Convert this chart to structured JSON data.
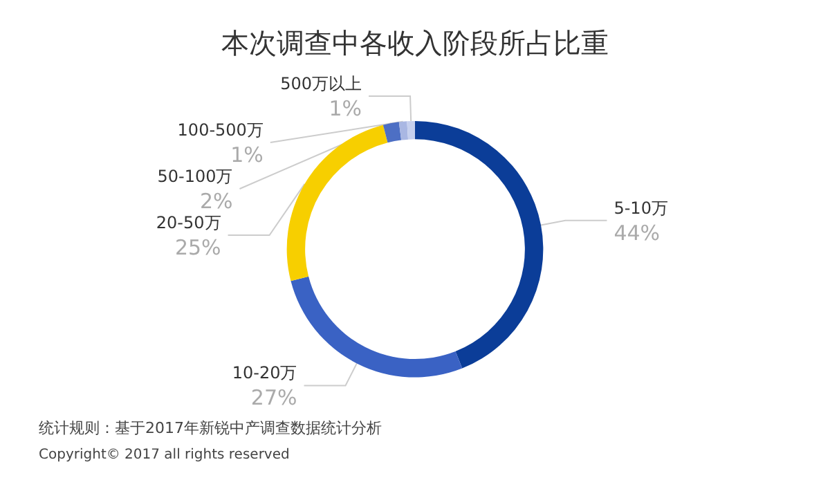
{
  "chart_data": {
    "type": "donut",
    "title": "本次调查中各收入阶段所占比重",
    "categories": [
      "5-10万",
      "10-20万",
      "20-50万",
      "50-100万",
      "100-500万",
      "500万以上"
    ],
    "values": [
      44,
      27,
      25,
      2,
      1,
      1
    ],
    "colors": [
      "#0b3d98",
      "#3a62c4",
      "#f7cf00",
      "#4d6fc4",
      "#a9b7e3",
      "#c6d0ee"
    ],
    "value_labels": [
      "44%",
      "27%",
      "25%",
      "2%",
      "1%",
      "1%"
    ],
    "legend": false,
    "annotations": [
      "统计规则：基于2017年新锐中产调查数据统计分析",
      "Copyright© 2017 all rights reserved"
    ]
  }
}
